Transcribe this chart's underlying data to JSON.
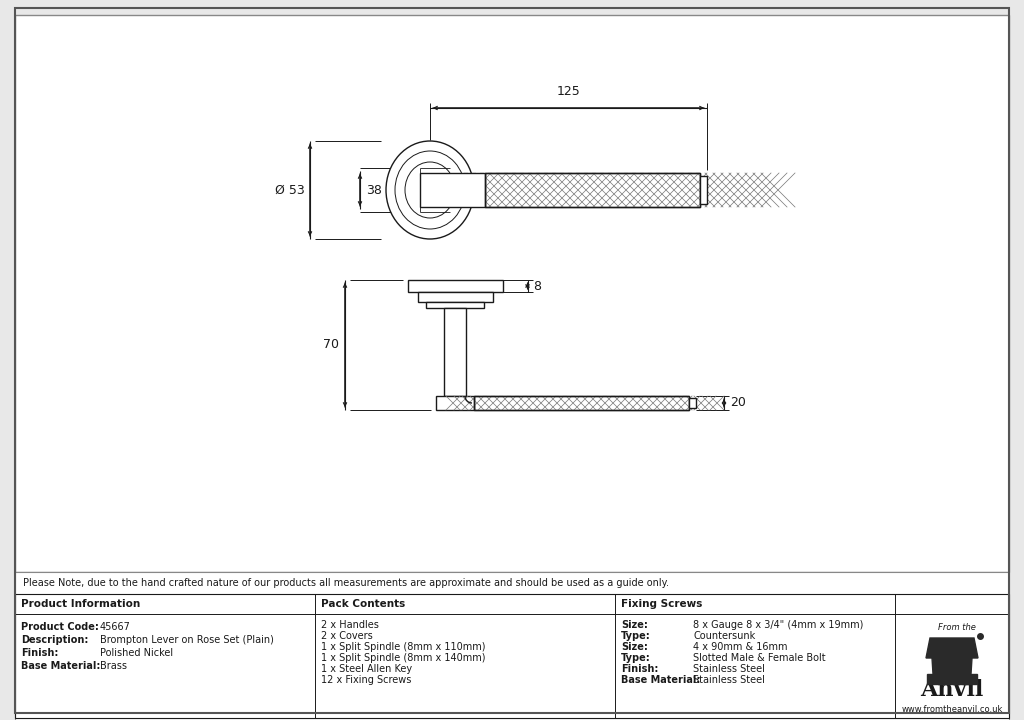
{
  "bg_color": "#e8e8e8",
  "drawing_bg": "#ffffff",
  "line_color": "#1a1a1a",
  "note_text": "Please Note, due to the hand crafted nature of our products all measurements are approximate and should be used as a guide only.",
  "product_info": {
    "header": "Product Information",
    "rows": [
      [
        "Product Code:",
        "45667"
      ],
      [
        "Description:",
        "Brompton Lever on Rose Set (Plain)"
      ],
      [
        "Finish:",
        "Polished Nickel"
      ],
      [
        "Base Material:",
        "Brass"
      ]
    ]
  },
  "pack_contents": {
    "header": "Pack Contents",
    "items": [
      "2 x Handles",
      "2 x Covers",
      "1 x Split Spindle (8mm x 110mm)",
      "1 x Split Spindle (8mm x 140mm)",
      "1 x Steel Allen Key",
      "12 x Fixing Screws"
    ]
  },
  "fixing_screws": {
    "header": "Fixing Screws",
    "rows": [
      [
        "Size:",
        "8 x Gauge 8 x 3/4\" (4mm x 19mm)"
      ],
      [
        "Type:",
        "Countersunk"
      ],
      [
        "Size:",
        "4 x 90mm & 16mm"
      ],
      [
        "Type:",
        "Slotted Male & Female Bolt"
      ],
      [
        "Finish:",
        "Stainless Steel"
      ],
      [
        "Base Material:",
        "Stainless Steel"
      ]
    ]
  }
}
